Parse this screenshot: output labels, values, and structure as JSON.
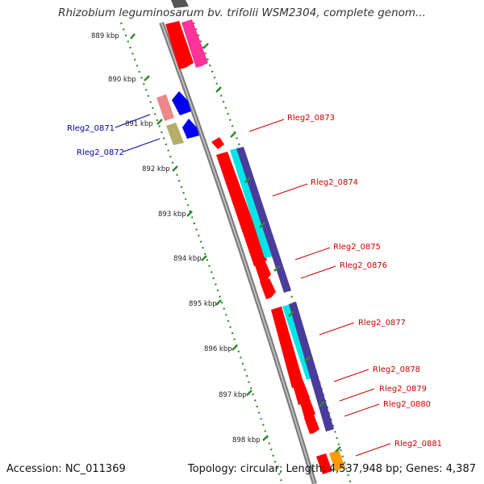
{
  "title": "Rhizobium leguminosarum bv. trifolii WSM2304, complete genom...",
  "accession": "Accession: NC_011369",
  "topology": "Topology: circular; Length: 4,537,948 bp; Genes: 4,387",
  "ticks": [
    {
      "label": "889 kbp"
    },
    {
      "label": "890 kbp"
    },
    {
      "label": "891 kbp"
    },
    {
      "label": "892 kbp"
    },
    {
      "label": "893 kbp"
    },
    {
      "label": "894 kbp"
    },
    {
      "label": "895 kbp"
    },
    {
      "label": "896 kbp"
    },
    {
      "label": "897 kbp"
    },
    {
      "label": "898 kbp"
    }
  ],
  "genes_forward": [
    {
      "name": "Rleg2_0873"
    },
    {
      "name": "Rleg2_0874"
    },
    {
      "name": "Rleg2_0875"
    },
    {
      "name": "Rleg2_0876"
    },
    {
      "name": "Rleg2_0877"
    },
    {
      "name": "Rleg2_0878"
    },
    {
      "name": "Rleg2_0879"
    },
    {
      "name": "Rleg2_0880"
    },
    {
      "name": "Rleg2_0881"
    }
  ],
  "genes_reverse": [
    {
      "name": "Rleg2_0871"
    },
    {
      "name": "Rleg2_0872"
    }
  ],
  "colors": {
    "gene_forward": "#ff0000",
    "gene_reverse": "#0000ee",
    "cds_cyan": "#00e5e5",
    "cds_purple": "#4b3b9a",
    "cds_magenta": "#ff3399",
    "cds_pink": "#ee8888",
    "cds_olive": "#b5ad6a",
    "cds_orange": "#ff9900",
    "backbone": "#808080",
    "ruler": "#2e8b2e"
  }
}
